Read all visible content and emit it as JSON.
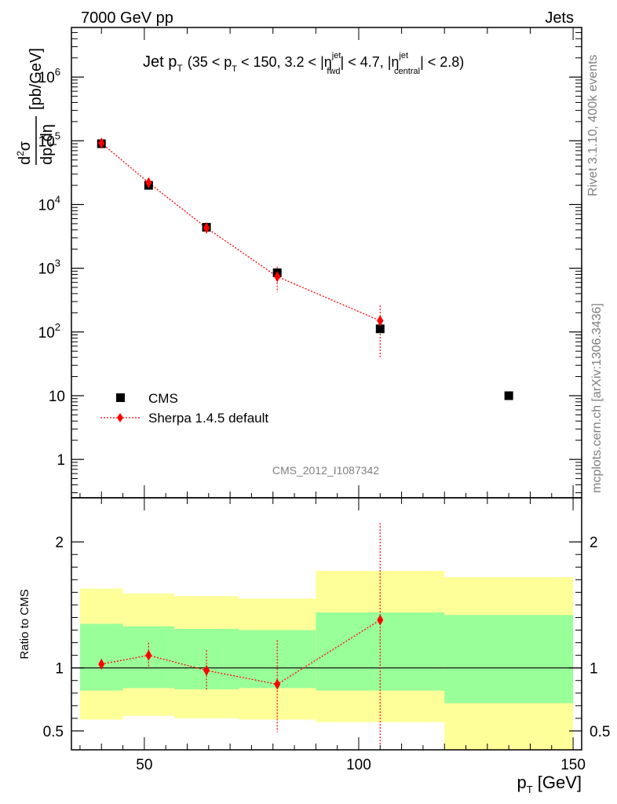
{
  "header": {
    "left": "7000 GeV pp",
    "right": "Jets"
  },
  "title": {
    "main": "Jet p",
    "main_sub": "T",
    "cond_a": "(35 < p",
    "cond_a_sub": "T",
    "cond_b": " < 150, 3.2 < |η",
    "cond_b_sup": "jet",
    "cond_b_sub": "fwd",
    "cond_c": "| < 4.7, |η",
    "cond_c_sup": "jet",
    "cond_c_sub": "central",
    "cond_d": "| < 2.8)"
  },
  "side_labels": {
    "rivet": "Rivet 3.1.10,  400k events",
    "mcplots": "mcplots.cern.ch [arXiv:1306.3436]"
  },
  "watermark": "CMS_2012_I1087342",
  "colors": {
    "data": "#000000",
    "mc": "#ff0000",
    "band_inner": "#99ff99",
    "band_outer": "#ffff99"
  },
  "chart_data": [
    {
      "type": "scatter",
      "log_y": true,
      "xlim": [
        33,
        152
      ],
      "ylim": [
        0.25,
        6000000
      ],
      "ylabel": "d²σ/dp_T dη [pb/GeV]",
      "y_ticks": [
        {
          "v": 1,
          "label": "1"
        },
        {
          "v": 10,
          "label": "10"
        },
        {
          "v": 100,
          "base": "10",
          "exp": "2"
        },
        {
          "v": 1000,
          "base": "10",
          "exp": "3"
        },
        {
          "v": 10000,
          "base": "10",
          "exp": "4"
        },
        {
          "v": 100000,
          "base": "10",
          "exp": "5"
        },
        {
          "v": 1000000,
          "base": "10",
          "exp": "6"
        }
      ],
      "legend": {
        "position": "bottom-left",
        "entries": [
          "CMS",
          "Sherpa 1.4.5 default"
        ]
      },
      "series": [
        {
          "name": "CMS",
          "marker": "square",
          "bins": [
            [
              35,
              45
            ],
            [
              45,
              57
            ],
            [
              57,
              72
            ],
            [
              72,
              90
            ],
            [
              90,
              120
            ],
            [
              120,
              150
            ]
          ],
          "x": [
            40,
            51,
            64.5,
            81,
            105,
            135
          ],
          "y": [
            90000,
            20000,
            4400,
            850,
            112,
            10
          ]
        },
        {
          "name": "Sherpa 1.4.5 default",
          "marker": "diamond",
          "x": [
            40,
            51,
            64.5,
            81,
            105
          ],
          "y": [
            92000,
            22000,
            4300,
            740,
            150
          ],
          "y_err_low": [
            9000,
            2200,
            900,
            320,
            110
          ],
          "y_err_high": [
            9000,
            2200,
            900,
            320,
            110
          ]
        }
      ]
    },
    {
      "type": "scatter",
      "xlim": [
        33,
        152
      ],
      "ylim": [
        0.35,
        2.35
      ],
      "xlabel": "p_T [GeV]",
      "ylabel": "Ratio to CMS",
      "x_ticks": [
        50,
        100,
        150
      ],
      "y_ticks": [
        {
          "v": 0.5,
          "label": "0.5"
        },
        {
          "v": 1,
          "label": "1"
        },
        {
          "v": 2,
          "label": "2"
        }
      ],
      "bands": [
        {
          "x0": 35,
          "x1": 45,
          "inner_lo": 0.82,
          "inner_hi": 1.35,
          "outer_lo": 0.59,
          "outer_hi": 1.63
        },
        {
          "x0": 45,
          "x1": 57,
          "inner_lo": 0.84,
          "inner_hi": 1.33,
          "outer_lo": 0.62,
          "outer_hi": 1.59
        },
        {
          "x0": 57,
          "x1": 72,
          "inner_lo": 0.83,
          "inner_hi": 1.31,
          "outer_lo": 0.6,
          "outer_hi": 1.57
        },
        {
          "x0": 72,
          "x1": 90,
          "inner_lo": 0.84,
          "inner_hi": 1.3,
          "outer_lo": 0.59,
          "outer_hi": 1.55
        },
        {
          "x0": 90,
          "x1": 120,
          "inner_lo": 0.82,
          "inner_hi": 1.44,
          "outer_lo": 0.57,
          "outer_hi": 1.77
        },
        {
          "x0": 120,
          "x1": 150,
          "inner_lo": 0.72,
          "inner_hi": 1.42,
          "outer_lo": 0.35,
          "outer_hi": 1.72
        }
      ],
      "series": [
        {
          "name": "Sherpa 1.4.5 default",
          "x": [
            40,
            51,
            64.5,
            81,
            105
          ],
          "y": [
            1.03,
            1.1,
            0.98,
            0.87,
            1.38
          ],
          "y_err_low": [
            0.04,
            0.1,
            0.16,
            0.38,
            1.0
          ],
          "y_err_high": [
            0.04,
            0.1,
            0.16,
            0.35,
            0.77
          ]
        }
      ]
    }
  ]
}
